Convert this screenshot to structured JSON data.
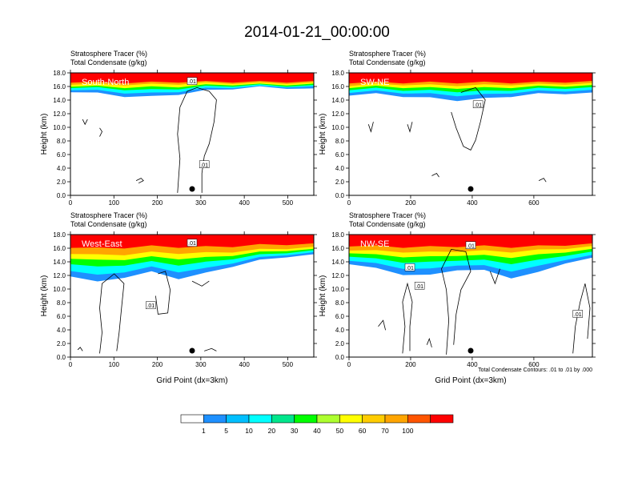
{
  "figure": {
    "title": "2014-01-21_00:00:00",
    "footnote": "Total Condensate Contours: .01 to .01 by .000"
  },
  "chart_data": [
    {
      "type": "heatmap",
      "panel": "South-North",
      "title_lines": [
        "Stratosphere Tracer   (%)",
        "Total Condensate   (g/kg)"
      ],
      "ylabel": "Height (km)",
      "xlabel": "",
      "xlim": [
        0,
        560
      ],
      "ylim": [
        0,
        18
      ],
      "xticks": [
        0,
        100,
        200,
        300,
        400,
        500
      ],
      "yticks": [
        "0.0",
        "2.0",
        "4.0",
        "6.0",
        "8.0",
        "10.0",
        "12.0",
        "14.0",
        "16.0",
        "18.0"
      ],
      "contour_labels": [
        ".01",
        ".01"
      ],
      "marker_x": 280,
      "tracer_edges": [
        {
          "level": 1,
          "y": [
            15.3,
            15.0,
            14.6,
            14.5,
            14.9,
            15.4,
            15.7,
            15.9,
            15.8,
            15.6
          ]
        },
        {
          "level": 10,
          "y": [
            15.6,
            15.4,
            15.1,
            15.0,
            15.3,
            15.7,
            15.9,
            16.0,
            16.0,
            15.9
          ]
        },
        {
          "level": 30,
          "y": [
            15.9,
            15.8,
            15.6,
            15.5,
            15.7,
            16.0,
            16.1,
            16.2,
            16.1,
            16.1
          ]
        },
        {
          "level": 50,
          "y": [
            16.1,
            16.0,
            15.9,
            15.9,
            16.0,
            16.2,
            16.3,
            16.3,
            16.3,
            16.3
          ]
        },
        {
          "level": 70,
          "y": [
            16.4,
            16.3,
            16.3,
            16.3,
            16.4,
            16.5,
            16.5,
            16.5,
            16.5,
            16.5
          ]
        },
        {
          "level": 100,
          "y": [
            16.7,
            16.6,
            16.6,
            16.6,
            16.7,
            16.7,
            16.7,
            16.7,
            16.7,
            16.7
          ]
        }
      ]
    },
    {
      "type": "heatmap",
      "panel": "SW-NE",
      "title_lines": [
        "Stratosphere Tracer   (%)",
        "Total Condensate   (g/kg)"
      ],
      "ylabel": "Height (km)",
      "xlabel": "",
      "xlim": [
        0,
        790
      ],
      "ylim": [
        0,
        18
      ],
      "xticks": [
        0,
        200,
        400,
        600
      ],
      "yticks": [
        "0.0",
        "2.0",
        "4.0",
        "6.0",
        "8.0",
        "10.0",
        "12.0",
        "14.0",
        "16.0",
        "18.0"
      ],
      "contour_labels": [
        ".01"
      ],
      "marker_x": 395,
      "tracer_edges": [
        {
          "level": 1,
          "y": [
            14.8,
            14.9,
            14.6,
            14.3,
            14.0,
            14.2,
            14.6,
            14.9,
            15.0,
            15.0
          ]
        },
        {
          "level": 10,
          "y": [
            15.2,
            15.3,
            15.1,
            14.9,
            14.7,
            14.8,
            15.1,
            15.3,
            15.4,
            15.4
          ]
        },
        {
          "level": 30,
          "y": [
            15.6,
            15.7,
            15.5,
            15.4,
            15.3,
            15.3,
            15.5,
            15.7,
            15.8,
            15.8
          ]
        },
        {
          "level": 50,
          "y": [
            15.9,
            16.0,
            15.9,
            15.8,
            15.8,
            15.8,
            15.9,
            16.0,
            16.1,
            16.1
          ]
        },
        {
          "level": 70,
          "y": [
            16.2,
            16.3,
            16.3,
            16.2,
            16.2,
            16.2,
            16.3,
            16.3,
            16.4,
            16.4
          ]
        },
        {
          "level": 100,
          "y": [
            16.6,
            16.6,
            16.6,
            16.6,
            16.6,
            16.6,
            16.6,
            16.6,
            16.7,
            16.7
          ]
        }
      ]
    },
    {
      "type": "heatmap",
      "panel": "West-East",
      "title_lines": [
        "Stratosphere Tracer   (%)",
        "Total Condensate   (g/kg)"
      ],
      "ylabel": "Height (km)",
      "xlabel": "Grid Point (dx=3km)",
      "xlim": [
        0,
        560
      ],
      "ylim": [
        0,
        18
      ],
      "xticks": [
        0,
        100,
        200,
        300,
        400,
        500
      ],
      "yticks": [
        "0.0",
        "2.0",
        "4.0",
        "6.0",
        "8.0",
        "10.0",
        "12.0",
        "14.0",
        "16.0",
        "18.0"
      ],
      "contour_labels": [
        ".01",
        ".01"
      ],
      "marker_x": 280,
      "tracer_edges": [
        {
          "level": 1,
          "y": [
            12.0,
            11.0,
            11.8,
            12.5,
            11.6,
            12.3,
            13.4,
            14.2,
            14.8,
            15.0
          ]
        },
        {
          "level": 10,
          "y": [
            12.8,
            12.0,
            12.6,
            13.2,
            12.6,
            13.0,
            13.9,
            14.6,
            15.1,
            15.3
          ]
        },
        {
          "level": 30,
          "y": [
            13.8,
            13.2,
            13.6,
            14.0,
            13.6,
            13.9,
            14.5,
            15.0,
            15.4,
            15.6
          ]
        },
        {
          "level": 50,
          "y": [
            14.6,
            14.2,
            14.4,
            14.7,
            14.5,
            14.6,
            15.0,
            15.4,
            15.7,
            15.8
          ]
        },
        {
          "level": 70,
          "y": [
            15.3,
            15.0,
            15.1,
            15.4,
            15.3,
            15.3,
            15.5,
            15.8,
            16.0,
            16.1
          ]
        },
        {
          "level": 100,
          "y": [
            16.2,
            16.0,
            16.1,
            16.3,
            16.2,
            16.2,
            16.3,
            16.5,
            16.6,
            16.6
          ]
        }
      ]
    },
    {
      "type": "heatmap",
      "panel": "NW-SE",
      "title_lines": [
        "Stratosphere Tracer   (%)",
        "Total Condensate   (g/kg)"
      ],
      "ylabel": "Height (km)",
      "xlabel": "Grid Point (dx=3km)",
      "xlim": [
        0,
        790
      ],
      "ylim": [
        0,
        18
      ],
      "xticks": [
        0,
        200,
        400,
        600
      ],
      "yticks": [
        "0.0",
        "2.0",
        "4.0",
        "6.0",
        "8.0",
        "10.0",
        "12.0",
        "14.0",
        "16.0",
        "18.0"
      ],
      "contour_labels": [
        ".01",
        ".01",
        ".01",
        ".01"
      ],
      "marker_x": 395,
      "tracer_edges": [
        {
          "level": 1,
          "y": [
            13.8,
            13.0,
            12.2,
            12.0,
            12.9,
            12.7,
            11.7,
            12.4,
            13.9,
            14.5
          ]
        },
        {
          "level": 10,
          "y": [
            14.3,
            13.7,
            13.1,
            12.9,
            13.6,
            13.4,
            12.7,
            13.3,
            14.4,
            14.9
          ]
        },
        {
          "level": 30,
          "y": [
            14.9,
            14.4,
            14.0,
            13.9,
            14.3,
            14.2,
            13.8,
            14.2,
            15.0,
            15.4
          ]
        },
        {
          "level": 50,
          "y": [
            15.4,
            15.0,
            14.8,
            14.7,
            15.0,
            14.9,
            14.7,
            15.0,
            15.5,
            15.8
          ]
        },
        {
          "level": 70,
          "y": [
            15.8,
            15.6,
            15.5,
            15.4,
            15.6,
            15.6,
            15.5,
            15.7,
            16.0,
            16.2
          ]
        },
        {
          "level": 100,
          "y": [
            16.4,
            16.3,
            16.2,
            16.2,
            16.3,
            16.3,
            16.2,
            16.3,
            16.5,
            16.6
          ]
        }
      ]
    }
  ],
  "colorbar": {
    "levels": [
      "1",
      "5",
      "10",
      "20",
      "30",
      "40",
      "50",
      "60",
      "70",
      "100"
    ],
    "colors": [
      "#ffffff",
      "#1e90ff",
      "#00bfff",
      "#00ffff",
      "#00e68c",
      "#00ff00",
      "#adff2f",
      "#ffff00",
      "#ffcc00",
      "#ffa500",
      "#ff5500",
      "#ff0000"
    ]
  }
}
